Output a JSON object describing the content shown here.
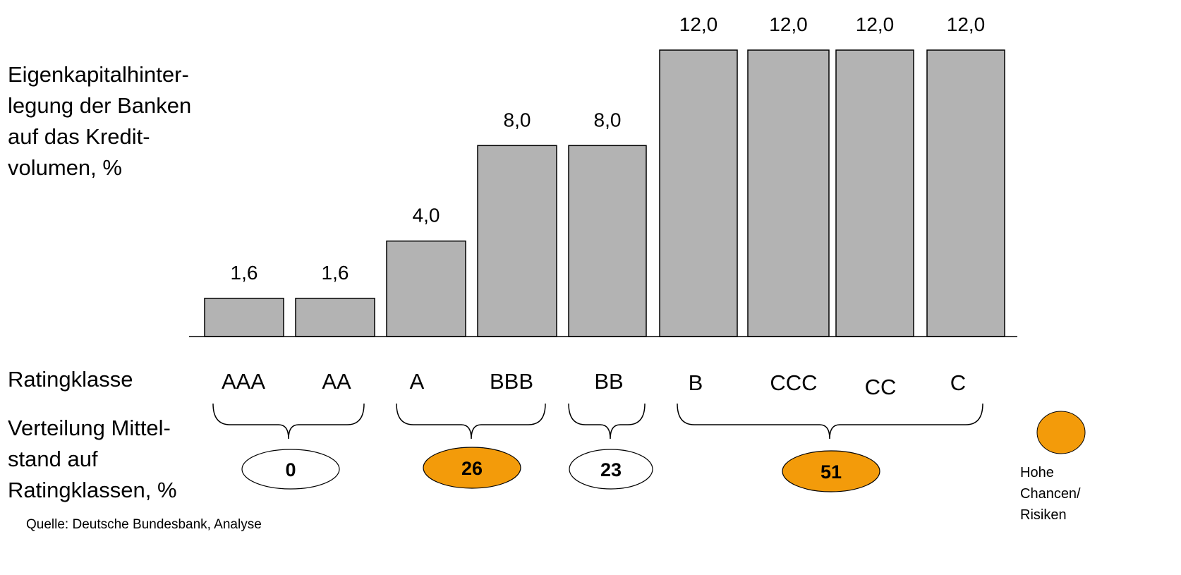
{
  "chart_data": {
    "type": "bar",
    "ylabel_lines": [
      "Eigenkapitalhinter-",
      "legung der Banken",
      "auf das Kredit-",
      "volumen, %"
    ],
    "categories": [
      "AAA",
      "AA",
      "A",
      "BBB",
      "BB",
      "B",
      "CCC",
      "CC",
      "C"
    ],
    "values": [
      1.6,
      1.6,
      4.0,
      8.0,
      8.0,
      12.0,
      12.0,
      12.0,
      12.0
    ],
    "value_labels": [
      "1,6",
      "1,6",
      "4,0",
      "8,0",
      "8,0",
      "12,0",
      "12,0",
      "12,0",
      "12,0"
    ],
    "ylim": [
      0,
      12
    ],
    "bar_color": "#b3b3b3",
    "row_label": "Ratingklasse",
    "distribution": {
      "label_lines": [
        "Verteilung Mittel-",
        "stand  auf",
        "Ratingklassen, %"
      ],
      "groups": [
        {
          "categories": [
            "AAA",
            "AA"
          ],
          "value": "0",
          "highlight": false
        },
        {
          "categories": [
            "A",
            "BBB"
          ],
          "value": "26",
          "highlight": true
        },
        {
          "categories": [
            "BB"
          ],
          "value": "23",
          "highlight": false
        },
        {
          "categories": [
            "B",
            "CCC",
            "CC",
            "C"
          ],
          "value": "51",
          "highlight": true
        }
      ]
    },
    "legend": {
      "color": "#f39b0a",
      "lines": [
        "Hohe",
        "Chancen/",
        "Risiken"
      ]
    },
    "grid": false
  },
  "source": "Quelle: Deutsche Bundesbank, Analyse"
}
